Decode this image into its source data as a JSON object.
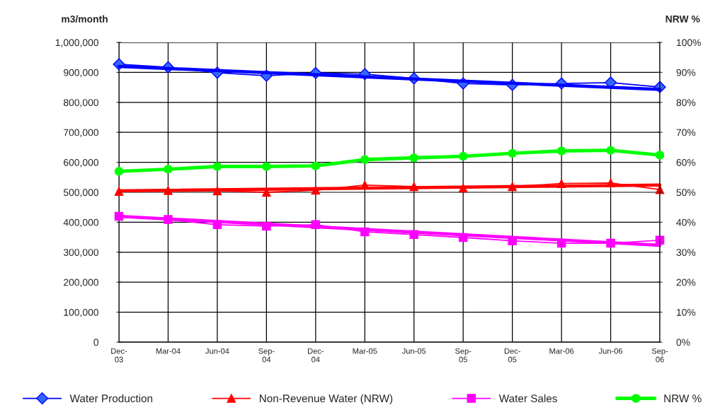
{
  "chart_data": {
    "type": "line",
    "xlabel": null,
    "ylabel": "m3/month",
    "y2label": "NRW %",
    "categories": [
      "Dec-\n03",
      "Mar-04",
      "Jun-04",
      "Sep-\n04",
      "Dec-\n04",
      "Mar-05",
      "Jun-05",
      "Sep-\n05",
      "Dec-\n05",
      "Mar-06",
      "Jun-06",
      "Sep-\n06"
    ],
    "series": [
      {
        "name": "Water Production",
        "color": "#0000ff",
        "marker": "diamond",
        "values": [
          927000,
          917000,
          899000,
          889000,
          898000,
          894000,
          880000,
          863000,
          858000,
          863000,
          866000,
          851000
        ]
      },
      {
        "name": "Non-Revenue Water (NRW)",
        "color": "#ff0000",
        "marker": "triangle",
        "values": [
          503000,
          506000,
          505000,
          500000,
          507000,
          524000,
          519000,
          514000,
          519000,
          529000,
          531000,
          509000
        ]
      },
      {
        "name": "Water Sales",
        "color": "#ff00ff",
        "marker": "square",
        "values": [
          420000,
          409000,
          392000,
          387000,
          392000,
          368000,
          359000,
          349000,
          338000,
          330000,
          330000,
          340000
        ]
      },
      {
        "name": "NRW %",
        "color": "#00ff00",
        "marker": "circle",
        "axis": "y2",
        "values": [
          57.0,
          57.7,
          58.6,
          58.6,
          58.8,
          60.9,
          61.5,
          62.0,
          63.0,
          63.8,
          64.0,
          62.4
        ]
      },
      {
        "type": "line",
        "color": "#0000ff",
        "marker": "none",
        "x": [
          "Dec-\n03",
          "Sep-\n06"
        ],
        "values": [
          920000,
          843000
        ]
      },
      {
        "type": "line",
        "color": "#ff0000",
        "marker": "none",
        "x": [
          "Dec-\n03",
          "Sep-\n06"
        ],
        "values": [
          505000,
          524000
        ]
      },
      {
        "type": "line",
        "color": "#ff00ff",
        "marker": "none",
        "x": [
          "Dec-\n03",
          "Sep-\n06"
        ],
        "values": [
          420000,
          323000
        ]
      }
    ],
    "ylim": [
      0,
      1000000
    ],
    "yticks": [
      0,
      {
        "value": 100000,
        "label": "100,000"
      },
      {
        "value": 200000,
        "label": "200,000"
      },
      {
        "value": 300000,
        "label": "300,000"
      },
      {
        "value": 400000,
        "label": "400,000"
      },
      {
        "value": 500000,
        "label": "500,000"
      },
      {
        "value": 600000,
        "label": "600,000"
      },
      {
        "value": 700000,
        "label": "700,000"
      },
      {
        "value": 800000,
        "label": "800,000"
      },
      {
        "value": 900000,
        "label": "900,000"
      },
      {
        "value": 1000000,
        "label": "1,000,000"
      }
    ],
    "y2lim": [
      0,
      100
    ],
    "y2ticks": [
      {
        "value": 0,
        "label": "0%"
      },
      {
        "value": 10,
        "label": "10%"
      },
      {
        "value": 20,
        "label": "20%"
      },
      {
        "value": 30,
        "label": "30%"
      },
      {
        "value": 40,
        "label": "40%"
      },
      {
        "value": 50,
        "label": "50%"
      },
      {
        "value": 60,
        "label": "60%"
      },
      {
        "value": 70,
        "label": "70%"
      },
      {
        "value": 80,
        "label": "80%"
      },
      {
        "value": 90,
        "label": "90%"
      },
      {
        "value": 100,
        "label": "100%"
      }
    ],
    "grid": true,
    "legend": "bottom",
    "line_style": "solid"
  }
}
